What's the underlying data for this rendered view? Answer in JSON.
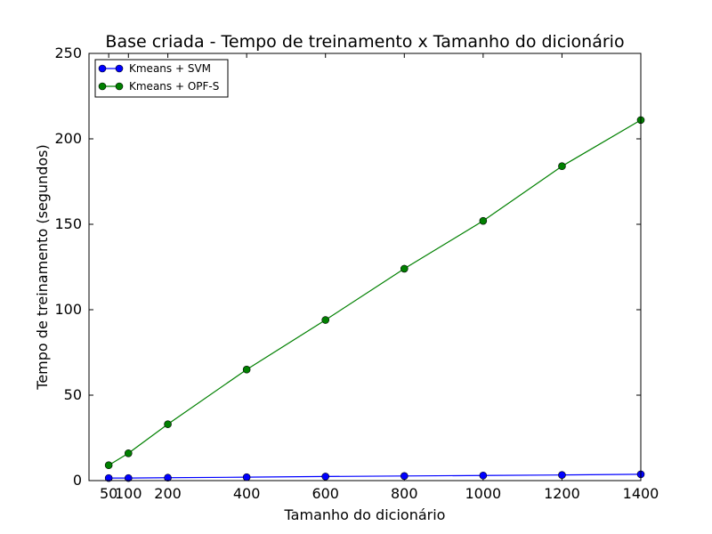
{
  "chart_data": {
    "type": "line",
    "title": "Base criada - Tempo de treinamento x Tamanho do dicionário",
    "xlabel": "Tamanho do dicionário",
    "ylabel": "Tempo de treinamento (segundos)",
    "xlim": [
      0,
      1400
    ],
    "ylim": [
      0,
      250
    ],
    "xticks": [
      50,
      100,
      200,
      400,
      600,
      800,
      1000,
      1200,
      1400
    ],
    "yticks": [
      0,
      50,
      100,
      150,
      200,
      250
    ],
    "grid": false,
    "legend_position": "top-left",
    "x": [
      50,
      100,
      200,
      400,
      600,
      800,
      1000,
      1200,
      1400
    ],
    "series": [
      {
        "name": "Kmeans + SVM",
        "color": "#0000ff",
        "values": [
          1.5,
          1.5,
          1.7,
          2.0,
          2.4,
          2.7,
          3.0,
          3.3,
          3.7
        ]
      },
      {
        "name": "Kmeans + OPF-S",
        "color": "#008000",
        "values": [
          9,
          16,
          33,
          65,
          94,
          124,
          152,
          184,
          211
        ]
      }
    ]
  }
}
